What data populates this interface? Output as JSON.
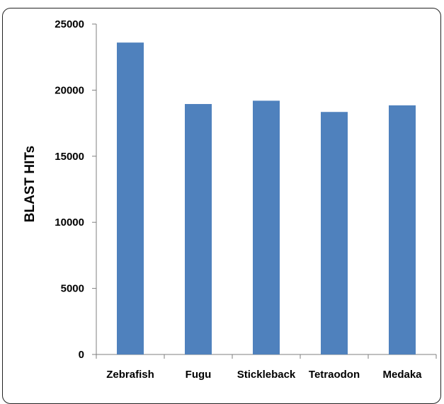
{
  "chart_data": {
    "type": "bar",
    "title": "",
    "xlabel": "",
    "ylabel": "BLAST HITs",
    "categories": [
      "Zebrafish",
      "Fugu",
      "Stickleback",
      "Tetraodon",
      "Medaka"
    ],
    "values": [
      23600,
      18950,
      19200,
      18350,
      18850
    ],
    "ylim": [
      0,
      25000
    ],
    "yticks": [
      0,
      5000,
      10000,
      15000,
      20000,
      25000
    ],
    "grid": false,
    "bar_color": "#4f81bd"
  }
}
